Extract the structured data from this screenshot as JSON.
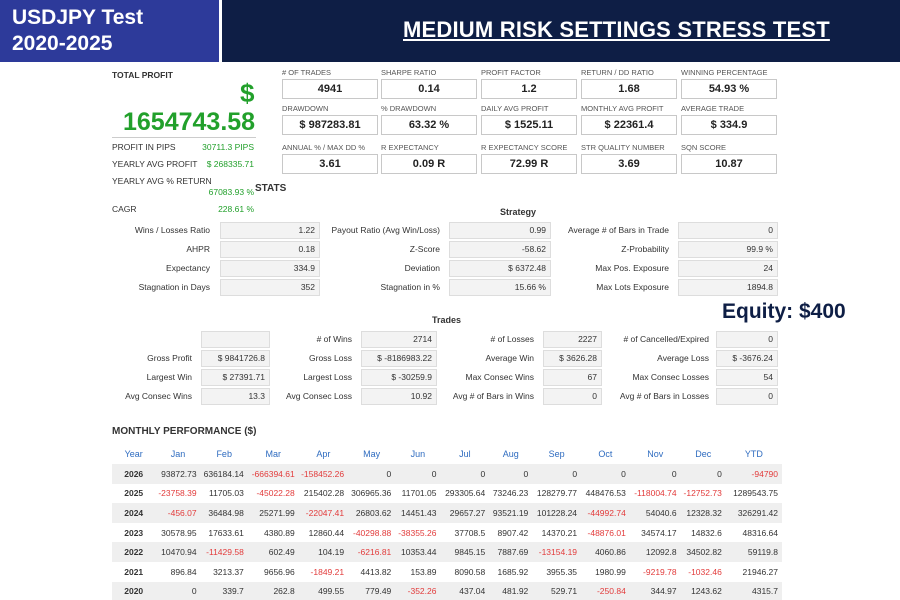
{
  "header": {
    "title_line1": "USDJPY Test",
    "title_line2": "2020-2025",
    "main_title": "MEDIUM RISK SETTINGS STRESS TEST"
  },
  "summary": {
    "total_profit_label": "TOTAL PROFIT",
    "currency_symbol": "$",
    "total_profit": "1654743.58",
    "profit_in_pips_label": "PROFIT IN PIPS",
    "profit_in_pips": "30711.3 PIPS",
    "yearly_avg_profit_label": "YEARLY AVG PROFIT",
    "yearly_avg_profit": "$ 268335.71",
    "yearly_avg_return_label": "YEARLY AVG % RETURN",
    "yearly_avg_return": "67083.93 %",
    "cagr_label": "CAGR",
    "cagr": "228.61 %"
  },
  "metrics": [
    {
      "label": "# OF TRADES",
      "value": "4941"
    },
    {
      "label": "SHARPE RATIO",
      "value": "0.14"
    },
    {
      "label": "PROFIT FACTOR",
      "value": "1.2"
    },
    {
      "label": "RETURN / DD RATIO",
      "value": "1.68"
    },
    {
      "label": "WINNING PERCENTAGE",
      "value": "54.93 %"
    },
    {
      "label": "DRAWDOWN",
      "value": "$ 987283.81"
    },
    {
      "label": "% DRAWDOWN",
      "value": "63.32 %"
    },
    {
      "label": "DAILY AVG PROFIT",
      "value": "$ 1525.11"
    },
    {
      "label": "MONTHLY AVG PROFIT",
      "value": "$ 22361.4"
    },
    {
      "label": "AVERAGE TRADE",
      "value": "$ 334.9"
    },
    {
      "label": "ANNUAL % / MAX DD %",
      "value": "3.61"
    },
    {
      "label": "R EXPECTANCY",
      "value": "0.09 R"
    },
    {
      "label": "R EXPECTANCY SCORE",
      "value": "72.99 R"
    },
    {
      "label": "STR QUALITY NUMBER",
      "value": "3.69"
    },
    {
      "label": "SQN SCORE",
      "value": "10.87"
    }
  ],
  "stats": {
    "title": "STATS",
    "strategy_title": "Strategy",
    "rows": [
      {
        "l1": "Wins / Losses Ratio",
        "v1": "1.22",
        "l2": "Payout Ratio (Avg Win/Loss)",
        "v2": "0.99",
        "l3": "Average # of Bars in Trade",
        "v3": "0"
      },
      {
        "l1": "AHPR",
        "v1": "0.18",
        "l2": "Z-Score",
        "v2": "-58.62",
        "l3": "Z-Probability",
        "v3": "99.9 %"
      },
      {
        "l1": "Expectancy",
        "v1": "334.9",
        "l2": "Deviation",
        "v2": "$ 6372.48",
        "l3": "Max Pos. Exposure",
        "v3": "24"
      },
      {
        "l1": "Stagnation in Days",
        "v1": "352",
        "l2": "Stagnation in %",
        "v2": "15.66 %",
        "l3": "Max Lots Exposure",
        "v3": "1894.8"
      }
    ]
  },
  "equity_note": "Equity: $400",
  "trades": {
    "title": "Trades",
    "rows": [
      {
        "l1": "",
        "v1": "",
        "l2": "# of Wins",
        "v2": "2714",
        "l3": "# of Losses",
        "v3": "2227",
        "l4": "# of Cancelled/Expired",
        "v4": "0"
      },
      {
        "l1": "Gross Profit",
        "v1": "$ 9841726.8",
        "l2": "Gross Loss",
        "v2": "$ -8186983.22",
        "l3": "Average Win",
        "v3": "$ 3626.28",
        "l4": "Average Loss",
        "v4": "$ -3676.24"
      },
      {
        "l1": "Largest Win",
        "v1": "$ 27391.71",
        "l2": "Largest Loss",
        "v2": "$ -30259.9",
        "l3": "Max Consec Wins",
        "v3": "67",
        "l4": "Max Consec Losses",
        "v4": "54"
      },
      {
        "l1": "Avg Consec Wins",
        "v1": "13.3",
        "l2": "Avg Consec Loss",
        "v2": "10.92",
        "l3": "Avg # of Bars in Wins",
        "v3": "0",
        "l4": "Avg # of Bars in Losses",
        "v4": "0"
      }
    ]
  },
  "monthly": {
    "title": "MONTHLY PERFORMANCE ($)",
    "headers": [
      "Year",
      "Jan",
      "Feb",
      "Mar",
      "Apr",
      "May",
      "Jun",
      "Jul",
      "Aug",
      "Sep",
      "Oct",
      "Nov",
      "Dec",
      "YTD"
    ],
    "rows": [
      [
        "2026",
        "93872.73",
        "636184.14",
        "-666394.61",
        "-158452.26",
        "0",
        "0",
        "0",
        "0",
        "0",
        "0",
        "0",
        "0",
        "-94790"
      ],
      [
        "2025",
        "-23758.39",
        "11705.03",
        "-45022.28",
        "215402.28",
        "306965.36",
        "11701.05",
        "293305.64",
        "73246.23",
        "128279.77",
        "448476.53",
        "-118004.74",
        "-12752.73",
        "1289543.75"
      ],
      [
        "2024",
        "-456.07",
        "36484.98",
        "25271.99",
        "-22047.41",
        "26803.62",
        "14451.43",
        "29657.27",
        "93521.19",
        "101228.24",
        "-44992.74",
        "54040.6",
        "12328.32",
        "326291.42"
      ],
      [
        "2023",
        "30578.95",
        "17633.61",
        "4380.89",
        "12860.44",
        "-40298.88",
        "-38355.26",
        "37708.5",
        "8907.42",
        "14370.21",
        "-48876.01",
        "34574.17",
        "14832.6",
        "48316.64"
      ],
      [
        "2022",
        "10470.94",
        "-11429.58",
        "602.49",
        "104.19",
        "-6216.81",
        "10353.44",
        "9845.15",
        "7887.69",
        "-13154.19",
        "4060.86",
        "12092.8",
        "34502.82",
        "59119.8"
      ],
      [
        "2021",
        "896.84",
        "3213.37",
        "9656.96",
        "-1849.21",
        "4413.82",
        "153.89",
        "8090.58",
        "1685.92",
        "3955.35",
        "1980.99",
        "-9219.78",
        "-1032.46",
        "21946.27"
      ],
      [
        "2020",
        "0",
        "339.7",
        "262.8",
        "499.55",
        "779.49",
        "-352.26",
        "437.04",
        "481.92",
        "529.71",
        "-250.84",
        "344.97",
        "1243.62",
        "4315.7"
      ]
    ]
  },
  "colors": {
    "header_bg": "#0e1e45",
    "title_box_bg": "#2d3a9a",
    "profit_green": "#22a02b",
    "negative_red": "#e23b3b",
    "month_header_blue": "#2f6cc0"
  }
}
